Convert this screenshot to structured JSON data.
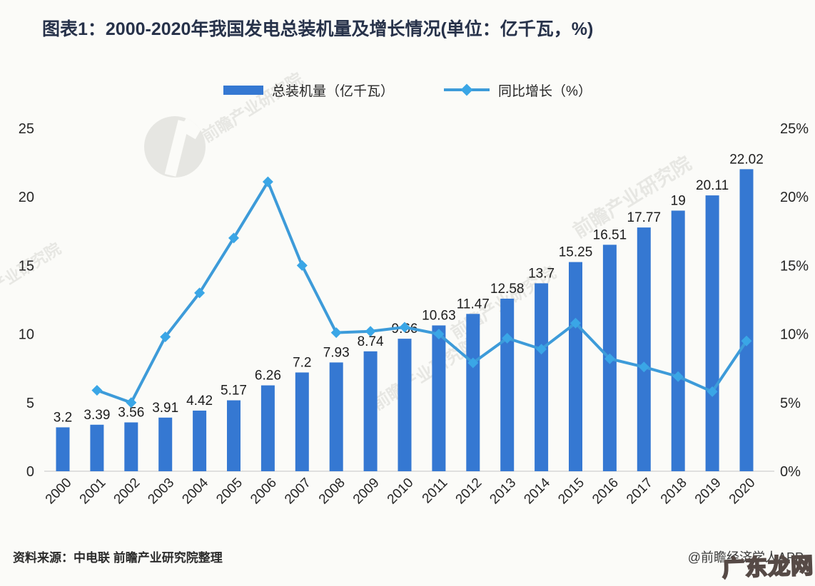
{
  "title": "图表1：2000-2020年我国发电总装机量及增长情况(单位：亿千瓦，%)",
  "legend": [
    {
      "label": "总装机量（亿千瓦）",
      "type": "bar",
      "color": "#3578d2"
    },
    {
      "label": "同比增长（%）",
      "type": "line",
      "color": "#3d9bd9",
      "marker_color": "#3aa6e6"
    }
  ],
  "chart_data": {
    "type": "bar",
    "title": "2000-2020年我国发电总装机量及增长情况",
    "categories": [
      "2000",
      "2001",
      "2002",
      "2003",
      "2004",
      "2005",
      "2006",
      "2007",
      "2008",
      "2009",
      "2010",
      "2011",
      "2012",
      "2013",
      "2014",
      "2015",
      "2016",
      "2017",
      "2018",
      "2019",
      "2020"
    ],
    "series": [
      {
        "name": "总装机量（亿千瓦）",
        "type": "bar",
        "axis": "left",
        "color": "#3578d2",
        "values": [
          3.2,
          3.39,
          3.56,
          3.91,
          4.42,
          5.17,
          6.26,
          7.2,
          7.93,
          8.74,
          9.66,
          10.63,
          11.47,
          12.58,
          13.7,
          15.25,
          16.51,
          17.77,
          19,
          20.11,
          22.02
        ],
        "labels": [
          "3.2",
          "3.39",
          "3.56",
          "3.91",
          "4.42",
          "5.17",
          "6.26",
          "7.2",
          "7.93",
          "8.74",
          "9.66",
          "10.63",
          "11.47",
          "12.58",
          "13.7",
          "15.25",
          "16.51",
          "17.77",
          "19",
          "20.11",
          "22.02"
        ]
      },
      {
        "name": "同比增长（%）",
        "type": "line",
        "axis": "right",
        "color": "#3d9bd9",
        "marker_color": "#3aa6e6",
        "values": [
          null,
          5.9,
          5.0,
          9.8,
          13.0,
          17.0,
          21.1,
          15.0,
          10.1,
          10.2,
          10.5,
          10.0,
          7.9,
          9.7,
          8.9,
          10.8,
          8.2,
          7.6,
          6.9,
          5.8,
          9.5
        ]
      }
    ],
    "left_axis": {
      "ticks": [
        "0",
        "5",
        "10",
        "15",
        "20",
        "25"
      ],
      "range": [
        0,
        25
      ]
    },
    "right_axis": {
      "ticks": [
        "0%",
        "5%",
        "10%",
        "15%",
        "20%",
        "25%"
      ],
      "range": [
        0,
        25
      ]
    },
    "grid": false,
    "legend_position": "top"
  },
  "watermarks": {
    "text": "前瞻产业研究院"
  },
  "footer": {
    "source": "资料来源：中电联 前瞻产业研究院整理",
    "credit": "@前瞻经济学人APP",
    "stamp": "广东龙网"
  },
  "colors": {
    "bar": "#3578d2",
    "line": "#3d9bd9",
    "marker": "#3aa6e6",
    "title_text": "#27324a",
    "label_text": "#1d1d1d",
    "axis_text": "#262626",
    "axis_line": "#d6d6d6",
    "background": "#fbfbf8",
    "stamp_outline": "#564a46"
  }
}
